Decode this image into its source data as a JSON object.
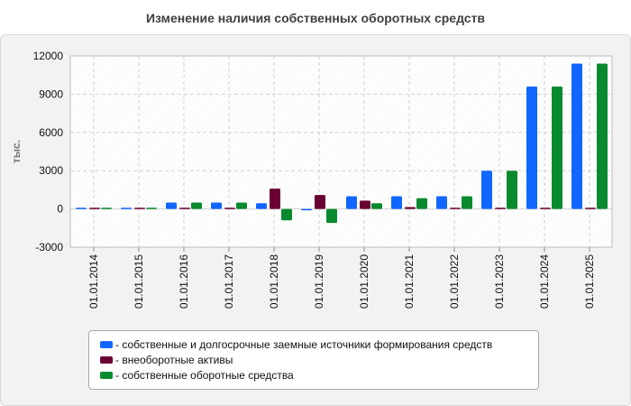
{
  "chart_data": {
    "type": "bar",
    "title": "Изменение наличия собственных оборотных средств",
    "ylabel": "тыс.",
    "xlabel": "",
    "ylim": [
      -3000,
      12000
    ],
    "yticks": [
      -3000,
      0,
      3000,
      6000,
      9000,
      12000
    ],
    "categories": [
      "01.01.2014",
      "01.01.2015",
      "01.01.2016",
      "01.01.2017",
      "01.01.2018",
      "01.01.2019",
      "01.01.2020",
      "01.01.2021",
      "01.01.2022",
      "01.01.2023",
      "01.01.2024",
      "01.01.2025"
    ],
    "series": [
      {
        "name": "- собственные и долгосрочные заемные источники формирования средств",
        "color": "#1166ff",
        "values": [
          100,
          100,
          500,
          500,
          450,
          -100,
          1000,
          1000,
          1000,
          3000,
          9600,
          11400
        ]
      },
      {
        "name": "- внеоборотные активы",
        "color": "#6b0033",
        "values": [
          100,
          100,
          100,
          100,
          1600,
          1100,
          650,
          150,
          100,
          100,
          100,
          100
        ]
      },
      {
        "name": "- собственные оборотные средства",
        "color": "#0a8a2e",
        "values": [
          100,
          100,
          500,
          500,
          -900,
          -1100,
          450,
          850,
          1000,
          3000,
          9600,
          11400
        ]
      }
    ],
    "grid": true,
    "legend_position": "bottom"
  }
}
